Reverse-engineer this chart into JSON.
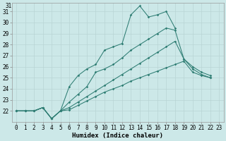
{
  "xlabel": "Humidex (Indice chaleur)",
  "x_values": [
    0,
    1,
    2,
    3,
    4,
    5,
    6,
    7,
    8,
    9,
    10,
    11,
    12,
    13,
    14,
    15,
    16,
    17,
    18,
    19,
    20,
    21,
    22,
    23
  ],
  "line1": [
    22,
    22,
    22,
    22.3,
    21.3,
    22,
    24.2,
    25.2,
    25.8,
    26.2,
    27.5,
    27.8,
    28.1,
    30.7,
    31.5,
    30.5,
    30.7,
    31.0,
    29.5,
    null,
    null,
    null,
    null,
    null
  ],
  "line2": [
    22,
    22,
    22,
    22.3,
    21.3,
    22,
    22.8,
    23.5,
    24.2,
    25.5,
    25.8,
    26.2,
    26.8,
    27.5,
    28.0,
    28.5,
    29.0,
    29.5,
    29.3,
    26.7,
    26.0,
    25.5,
    25.2,
    null
  ],
  "line3": [
    22,
    22,
    22,
    22.3,
    21.3,
    22,
    22.3,
    22.8,
    23.3,
    23.8,
    24.3,
    24.8,
    25.3,
    25.8,
    26.3,
    26.8,
    27.3,
    27.8,
    28.3,
    26.7,
    25.8,
    25.3,
    25.0,
    null
  ],
  "line4": [
    22,
    22,
    22,
    22.3,
    21.3,
    22,
    22.1,
    22.5,
    22.9,
    23.3,
    23.7,
    24.0,
    24.3,
    24.7,
    25.0,
    25.3,
    25.6,
    25.9,
    26.2,
    26.5,
    25.5,
    25.2,
    25.0,
    null
  ],
  "line_color": "#2e7d73",
  "bg_color": "#cce8e8",
  "grid_color": "#b8d4d4",
  "ylim": [
    21,
    31.8
  ],
  "xlim": [
    -0.5,
    23.5
  ],
  "yticks": [
    22,
    23,
    24,
    25,
    26,
    27,
    28,
    29,
    30,
    31
  ],
  "ytick_labels": [
    "22",
    "23",
    "24",
    "25",
    "26",
    "27",
    "28",
    "29",
    "30",
    "31"
  ],
  "xticks": [
    0,
    1,
    2,
    3,
    4,
    5,
    6,
    7,
    8,
    9,
    10,
    11,
    12,
    13,
    14,
    15,
    16,
    17,
    18,
    19,
    20,
    21,
    22,
    23
  ],
  "tick_fontsize": 5.5,
  "xlabel_fontsize": 6.5
}
